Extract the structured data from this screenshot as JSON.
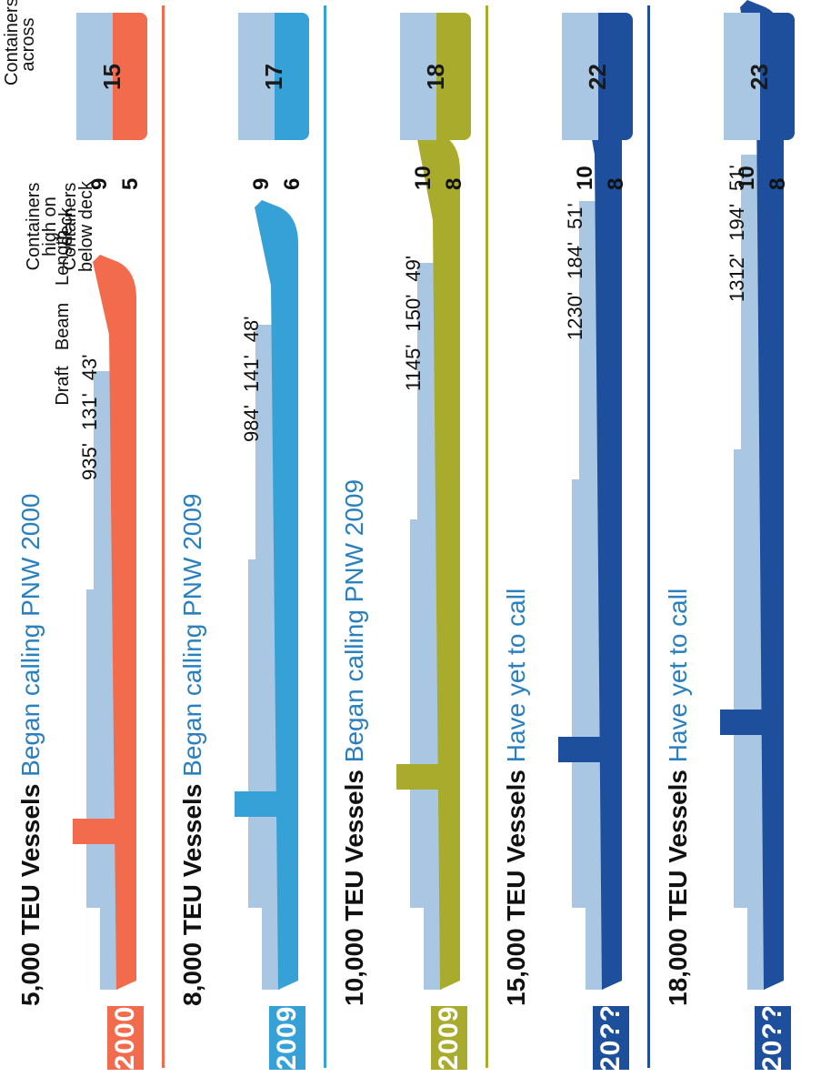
{
  "header": {
    "length_label": "Length",
    "beam_label": "Beam",
    "draft_label": "Draft",
    "high_on_deck_label_1": "Containers",
    "high_on_deck_label_2": "high on deck",
    "below_deck_label_1": "Containers",
    "below_deck_label_2": "below deck",
    "across_label_1": "Containers",
    "across_label_2": "across"
  },
  "vessels": [
    {
      "year": "2000",
      "teu": "5,000 TEU Vessels",
      "status": "Began calling PNW 2000",
      "length": "935'",
      "beam": "131'",
      "draft": "43'",
      "high_on_deck": "9",
      "below_deck": "5",
      "across": "15",
      "color": "#f26b4c"
    },
    {
      "year": "2009",
      "teu": "8,000 TEU Vessels",
      "status": "Began calling PNW 2009",
      "length": "984'",
      "beam": "141'",
      "draft": "48'",
      "high_on_deck": "9",
      "below_deck": "6",
      "across": "17",
      "color": "#36a1d6"
    },
    {
      "year": "2009",
      "teu": "10,000 TEU Vessels",
      "status": "Began calling PNW 2009",
      "length": "1145'",
      "beam": "150'",
      "draft": "49'",
      "high_on_deck": "10",
      "below_deck": "8",
      "across": "18",
      "color": "#a9ab2c"
    },
    {
      "year": "20??",
      "teu": "15,000 TEU Vessels",
      "status": "Have yet to call",
      "length": "1230'",
      "beam": "184'",
      "draft": "51'",
      "high_on_deck": "10",
      "below_deck": "8",
      "across": "22",
      "color": "#1d4f9c"
    },
    {
      "year": "20??",
      "teu": "18,000 TEU Vessels",
      "status": "Have yet to call",
      "length": "1312'",
      "beam": "194'",
      "draft": "51'",
      "high_on_deck": "10",
      "below_deck": "8",
      "across": "23",
      "color": "#1d4f9c"
    }
  ],
  "colors": {
    "status_text": "#2a7fbf",
    "container_light": "#a9c7e2"
  }
}
